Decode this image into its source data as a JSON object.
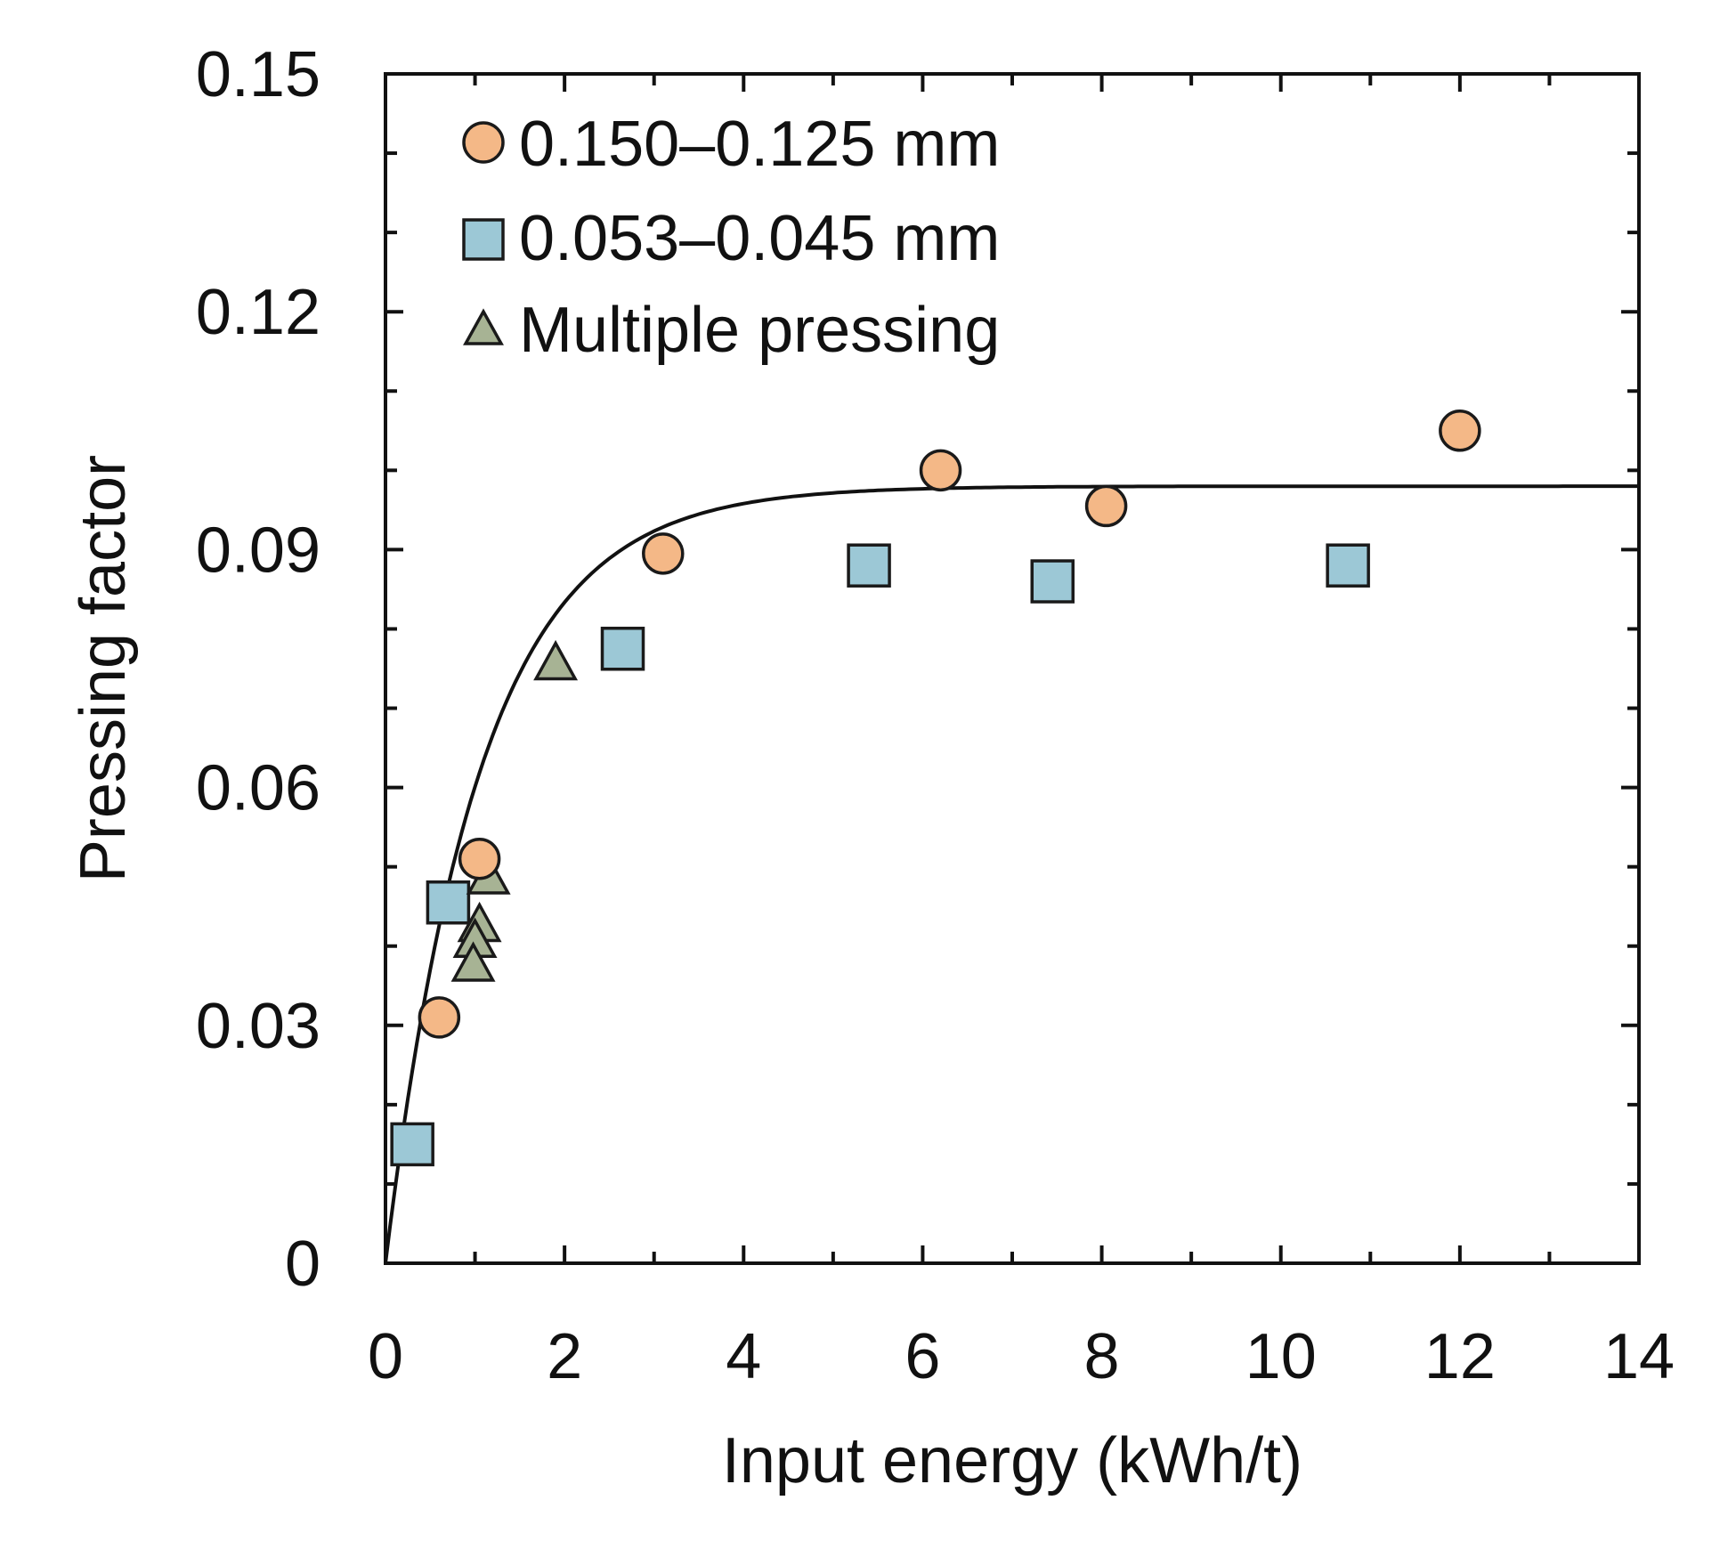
{
  "chart_data": {
    "type": "scatter",
    "title": "",
    "xlabel": "Input energy (kWh/t)",
    "ylabel": "Pressing factor",
    "xlim": [
      0,
      14
    ],
    "ylim": [
      0,
      0.15
    ],
    "x_ticks": [
      0,
      2,
      4,
      6,
      8,
      10,
      12,
      14
    ],
    "x_tick_labels": [
      "0",
      "2",
      "4",
      "6",
      "8",
      "10",
      "12",
      "14"
    ],
    "x_minor_step": 1,
    "y_ticks": [
      0,
      0.03,
      0.06,
      0.09,
      0.12,
      0.15
    ],
    "y_tick_labels": [
      "0",
      "0.03",
      "0.06",
      "0.09",
      "0.12",
      "0.15"
    ],
    "y_minor_step": 0.01,
    "grid": false,
    "legend_position": "top-left",
    "series": [
      {
        "name": "0.150–0.125 mm",
        "marker": "circle",
        "color": "#f4b887",
        "x": [
          0.6,
          1.05,
          3.1,
          6.2,
          8.05,
          12.0
        ],
        "y": [
          0.031,
          0.051,
          0.0895,
          0.1,
          0.0955,
          0.105
        ]
      },
      {
        "name": "0.053–0.045 mm",
        "marker": "square",
        "color": "#9cc8d6",
        "x": [
          0.3,
          0.7,
          2.65,
          5.4,
          7.45,
          10.75
        ],
        "y": [
          0.015,
          0.0455,
          0.0775,
          0.088,
          0.086,
          0.088
        ]
      },
      {
        "name": "Multiple pressing",
        "marker": "triangle",
        "color": "#a7b394",
        "x": [
          1.9,
          1.15,
          1.05,
          1.0,
          0.98
        ],
        "y": [
          0.0755,
          0.0485,
          0.0425,
          0.0405,
          0.0375
        ]
      }
    ],
    "fit_curve": {
      "type": "exponential",
      "equation": "y = a * (1 - exp(-b * x))",
      "a": 0.098,
      "b": 0.95,
      "color": "#111111"
    }
  }
}
